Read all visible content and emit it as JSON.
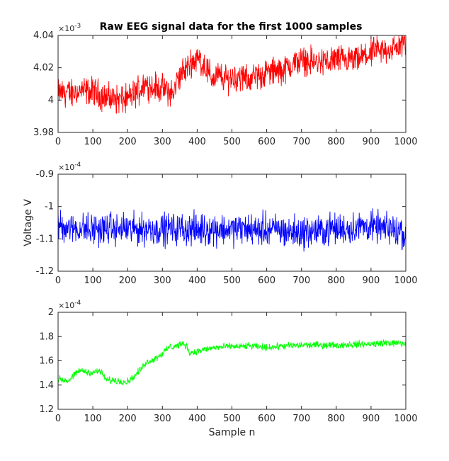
{
  "chart_data": [
    {
      "type": "line",
      "title": "Raw EEG signal data for the first 1000 samples",
      "xlabel": "",
      "ylabel": "",
      "exponent_label": "×10",
      "exponent_power": "-3",
      "xlim": [
        0,
        1000
      ],
      "ylim": [
        3.98,
        4.04
      ],
      "x_ticks": [
        "0",
        "100",
        "200",
        "300",
        "400",
        "500",
        "600",
        "700",
        "800",
        "900",
        "1000"
      ],
      "y_ticks": [
        "3.98",
        "4",
        "4.02",
        "4.04"
      ],
      "color": "#ff0000",
      "series": [
        {
          "x": [
            0,
            50,
            100,
            150,
            200,
            250,
            300,
            330,
            350,
            380,
            400,
            420,
            440,
            460,
            480,
            500,
            550,
            600,
            650,
            700,
            750,
            800,
            850,
            900,
            950,
            1000
          ],
          "values": [
            4.004,
            4.005,
            4.005,
            4.001,
            4.0,
            4.01,
            4.007,
            4.004,
            4.015,
            4.023,
            4.026,
            4.022,
            4.014,
            4.015,
            4.013,
            4.014,
            4.013,
            4.017,
            4.019,
            4.025,
            4.023,
            4.025,
            4.024,
            4.029,
            4.031,
            4.035
          ]
        }
      ]
    },
    {
      "type": "line",
      "title": "",
      "xlabel": "",
      "ylabel": "Voltage V",
      "exponent_label": "×10",
      "exponent_power": "-4",
      "xlim": [
        0,
        1000
      ],
      "ylim": [
        -1.2,
        -0.9
      ],
      "x_ticks": [
        "0",
        "100",
        "200",
        "300",
        "400",
        "500",
        "600",
        "700",
        "800",
        "900",
        "1000"
      ],
      "y_ticks": [
        "-1.2",
        "-1.1",
        "-1",
        "-0.9"
      ],
      "color": "#0000ff",
      "series": [
        {
          "x": [
            0,
            100,
            200,
            300,
            400,
            500,
            600,
            700,
            800,
            900,
            1000
          ],
          "values": [
            -1.06,
            -1.07,
            -1.07,
            -1.07,
            -1.07,
            -1.07,
            -1.07,
            -1.08,
            -1.07,
            -1.06,
            -1.08
          ]
        }
      ]
    },
    {
      "type": "line",
      "title": "",
      "xlabel": "Sample n",
      "ylabel": "",
      "exponent_label": "×10",
      "exponent_power": "-4",
      "xlim": [
        0,
        1000
      ],
      "ylim": [
        1.2,
        2.0
      ],
      "x_ticks": [
        "0",
        "100",
        "200",
        "300",
        "400",
        "500",
        "600",
        "700",
        "800",
        "900",
        "1000"
      ],
      "y_ticks": [
        "1.2",
        "1.4",
        "1.6",
        "1.8",
        "2"
      ],
      "color": "#00ff00",
      "series": [
        {
          "x": [
            0,
            30,
            60,
            100,
            120,
            140,
            200,
            220,
            250,
            280,
            300,
            320,
            360,
            370,
            380,
            400,
            450,
            500,
            550,
            600,
            700,
            800,
            900,
            950,
            1000
          ],
          "values": [
            1.45,
            1.43,
            1.52,
            1.5,
            1.52,
            1.44,
            1.43,
            1.47,
            1.58,
            1.62,
            1.66,
            1.71,
            1.74,
            1.72,
            1.66,
            1.68,
            1.71,
            1.72,
            1.72,
            1.71,
            1.73,
            1.73,
            1.74,
            1.75,
            1.74
          ]
        }
      ]
    }
  ]
}
